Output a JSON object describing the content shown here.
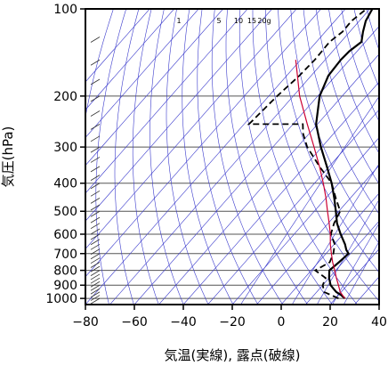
{
  "chart_data": {
    "type": "line",
    "subtype": "skew-t log-p sounding",
    "title": "",
    "xlabel": "気温(実線), 露点(破線)",
    "ylabel": "気圧(hPa)",
    "xlim": [
      -80,
      40
    ],
    "ylim": [
      1050,
      100
    ],
    "y_scale": "log",
    "x_ticks": [
      -80,
      -60,
      -40,
      -20,
      0,
      20,
      40
    ],
    "x_tick_labels": [
      "−80",
      "−60",
      "−40",
      "−20",
      "0",
      "20",
      "40"
    ],
    "y_ticks": [
      100,
      200,
      300,
      400,
      500,
      600,
      700,
      800,
      900,
      1000
    ],
    "y_tick_labels": [
      "100",
      "200",
      "300",
      "400",
      "500",
      "600",
      "700",
      "800",
      "900",
      "1000"
    ],
    "mixing_ratio_labels": [
      "1",
      "5",
      "10",
      "15",
      "20g"
    ],
    "mixing_ratio_values": [
      1,
      5,
      10,
      15,
      20
    ],
    "grid": true,
    "colors": {
      "temperature": "#000000",
      "dewpoint": "#000000",
      "parcel": "#cc0033",
      "guide_lines": "#3a3acc",
      "grid": "#555555"
    },
    "series": [
      {
        "style": "solid",
        "pressure": [
          1000,
          975,
          950,
          925,
          900,
          850,
          800,
          750,
          700,
          680,
          650,
          600,
          550,
          500,
          450,
          400,
          350,
          300,
          250,
          200,
          170,
          150,
          140,
          130,
          120,
          110,
          100
        ],
        "values": [
          23.8,
          21.2,
          18.0,
          15.6,
          13.2,
          10.0,
          7.4,
          8.4,
          9.2,
          7.0,
          4.4,
          -1.0,
          -6.4,
          -11.2,
          -16.6,
          -23.0,
          -31.0,
          -40.4,
          -50.6,
          -59.2,
          -63.0,
          -63.6,
          -63.2,
          -61.6,
          -64.6,
          -67.4,
          -69.0
        ]
      },
      {
        "style": "dashed",
        "pressure": [
          1000,
          950,
          900,
          850,
          800,
          750,
          700,
          650,
          600,
          550,
          500,
          450,
          400,
          350,
          300,
          270,
          250,
          250,
          200,
          170,
          150,
          130,
          120,
          110,
          100
        ],
        "values": [
          21.2,
          13.0,
          10.0,
          8.6,
          1.6,
          4.6,
          3.0,
          0.2,
          -5.0,
          -7.6,
          -9.4,
          -16.0,
          -23.0,
          -34.0,
          -46.0,
          -52.4,
          -56.0,
          -78.0,
          -76.6,
          -74.8,
          -74.2,
          -74.6,
          -73.0,
          -73.2,
          -71.4
        ]
      },
      {
        "style": "parcel",
        "pressure": [
          1000,
          950,
          900,
          850,
          800,
          750,
          700,
          650,
          600,
          550,
          500,
          450,
          400,
          350,
          300,
          250,
          200,
          150
        ],
        "values": [
          23.8,
          19.6,
          16.4,
          13.0,
          9.6,
          5.8,
          2.2,
          -1.6,
          -5.2,
          -9.6,
          -14.6,
          -20.0,
          -26.4,
          -34.0,
          -43.2,
          -54.2,
          -67.4,
          -82.0
        ]
      }
    ]
  }
}
